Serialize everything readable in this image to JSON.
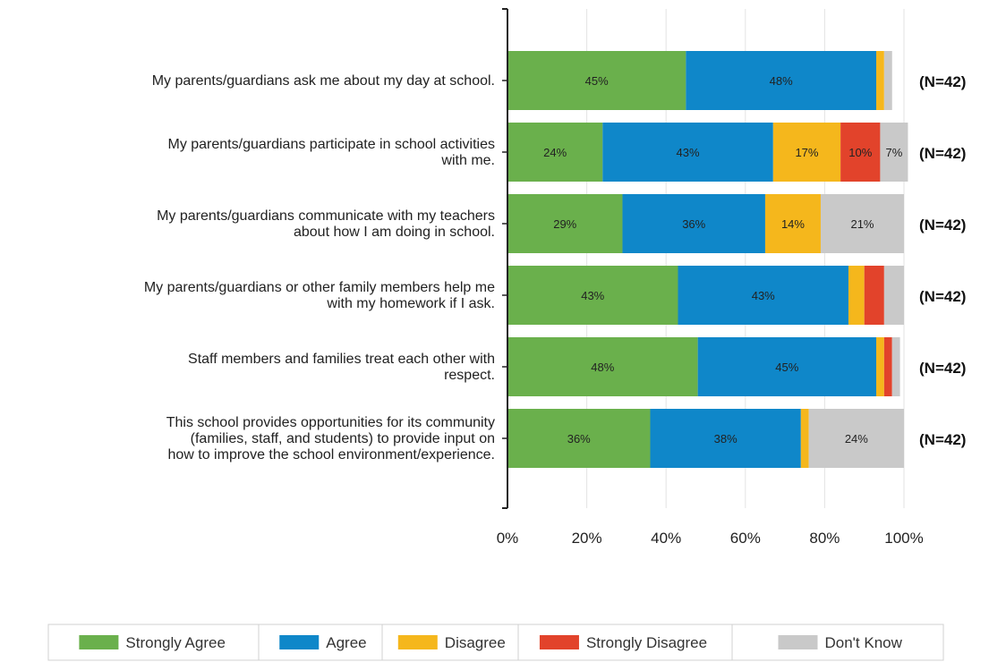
{
  "chart_data": {
    "type": "bar",
    "orientation": "horizontal",
    "stacked": true,
    "categories": [
      [
        "My parents/guardians ask me about my day at school."
      ],
      [
        "My parents/guardians participate in school activities",
        "with me."
      ],
      [
        "My parents/guardians communicate with my teachers",
        "about how I am doing in school."
      ],
      [
        "My parents/guardians or other family members help me",
        "with my homework if I ask."
      ],
      [
        "Staff members and families treat each other with",
        "respect."
      ],
      [
        "This school provides opportunities for its community",
        "(families, staff, and students) to provide input on",
        "how to improve the school environment/experience."
      ]
    ],
    "series": [
      {
        "name": "Strongly Agree",
        "color": "#6ab04c",
        "values": [
          45,
          24,
          29,
          43,
          48,
          36
        ],
        "labels": [
          "45%",
          "24%",
          "29%",
          "43%",
          "48%",
          "36%"
        ]
      },
      {
        "name": "Agree",
        "color": "#0f87c9",
        "values": [
          48,
          43,
          36,
          43,
          45,
          38
        ],
        "labels": [
          "48%",
          "43%",
          "36%",
          "43%",
          "45%",
          "38%"
        ]
      },
      {
        "name": "Disagree",
        "color": "#f5b71c",
        "values": [
          2,
          17,
          14,
          4,
          2,
          2
        ],
        "labels": [
          "",
          "17%",
          "14%",
          "",
          "",
          ""
        ]
      },
      {
        "name": "Strongly Disagree",
        "color": "#e2432b",
        "values": [
          0,
          10,
          0,
          5,
          2,
          0
        ],
        "labels": [
          "",
          "10%",
          "",
          "",
          "",
          ""
        ]
      },
      {
        "name": "Don't Know",
        "color": "#c9c9c9",
        "values": [
          2,
          7,
          21,
          5,
          2,
          24
        ],
        "labels": [
          "",
          "7%",
          "21%",
          "",
          "",
          "24%"
        ]
      }
    ],
    "n_labels": [
      "(N=42)",
      "(N=42)",
      "(N=42)",
      "(N=42)",
      "(N=42)",
      "(N=42)"
    ],
    "x_ticks": [
      "0%",
      "20%",
      "40%",
      "60%",
      "80%",
      "100%"
    ],
    "xlim": [
      0,
      100
    ],
    "grid": true,
    "legend_position": "bottom"
  }
}
